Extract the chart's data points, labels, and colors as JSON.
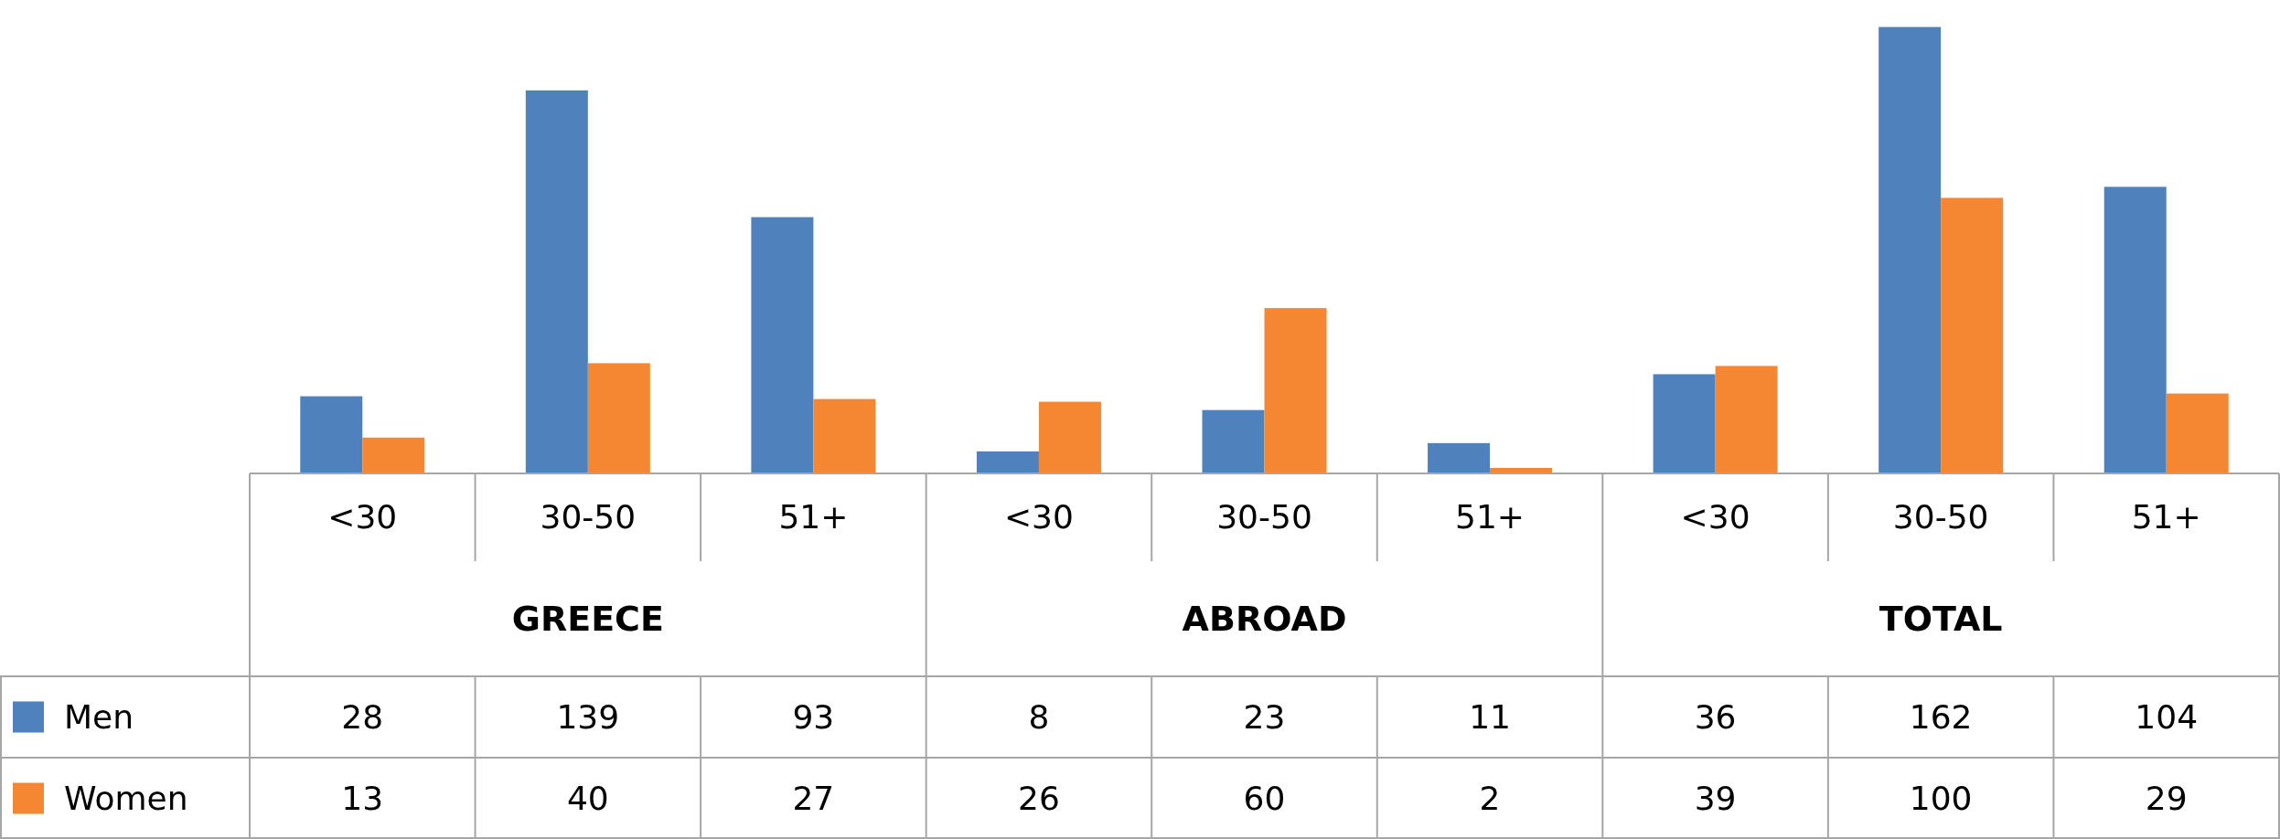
{
  "chart_data": {
    "type": "bar",
    "categories": [
      "<30",
      "30-50",
      "51+",
      "<30",
      "30-50",
      "51+",
      "<30",
      "30-50",
      "51+"
    ],
    "series": [
      {
        "name": "Men",
        "color": "#4f81bd",
        "values": [
          28,
          139,
          93,
          8,
          23,
          11,
          36,
          162,
          104
        ]
      },
      {
        "name": "Women",
        "color": "#f58733",
        "values": [
          13,
          40,
          27,
          26,
          60,
          2,
          39,
          100,
          29
        ]
      }
    ],
    "annotations": [
      "GREECE",
      "ABROAD",
      "TOTAL"
    ],
    "data_labels": true,
    "legend": "bottom",
    "grid": false
  }
}
